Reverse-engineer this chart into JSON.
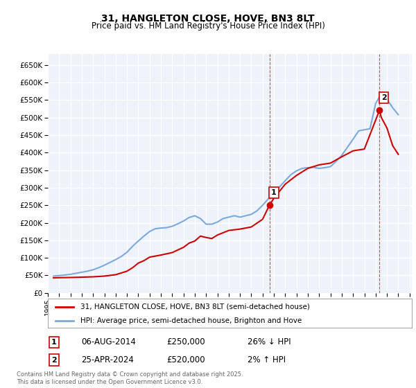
{
  "title": "31, HANGLETON CLOSE, HOVE, BN3 8LT",
  "subtitle": "Price paid vs. HM Land Registry's House Price Index (HPI)",
  "legend_label_red": "31, HANGLETON CLOSE, HOVE, BN3 8LT (semi-detached house)",
  "legend_label_blue": "HPI: Average price, semi-detached house, Brighton and Hove",
  "ylim": [
    0,
    680000
  ],
  "yticks": [
    0,
    50000,
    100000,
    150000,
    200000,
    250000,
    300000,
    350000,
    400000,
    450000,
    500000,
    550000,
    600000,
    650000
  ],
  "ytick_labels": [
    "£0",
    "£50K",
    "£100K",
    "£150K",
    "£200K",
    "£250K",
    "£300K",
    "£350K",
    "£400K",
    "£450K",
    "£500K",
    "£550K",
    "£600K",
    "£650K"
  ],
  "xlim_start": 1995.3,
  "xlim_end": 2027.2,
  "xticks": [
    1995,
    1996,
    1997,
    1998,
    1999,
    2000,
    2001,
    2002,
    2003,
    2004,
    2005,
    2006,
    2007,
    2008,
    2009,
    2010,
    2011,
    2012,
    2013,
    2014,
    2015,
    2016,
    2017,
    2018,
    2019,
    2020,
    2021,
    2022,
    2023,
    2024,
    2025,
    2026,
    2027
  ],
  "bg_color": "#eef2fb",
  "grid_color": "#ffffff",
  "line_color_red": "#cc0000",
  "line_color_blue": "#7aaadd",
  "marker1_x": 2014.6,
  "marker1_y": 250000,
  "marker2_x": 2024.33,
  "marker2_y": 520000,
  "vline1_x": 2014.6,
  "vline2_x": 2024.33,
  "table_row1": [
    "1",
    "06-AUG-2014",
    "£250,000",
    "26% ↓ HPI"
  ],
  "table_row2": [
    "2",
    "25-APR-2024",
    "£520,000",
    "2% ↑ HPI"
  ],
  "footer": "Contains HM Land Registry data © Crown copyright and database right 2025.\nThis data is licensed under the Open Government Licence v3.0.",
  "hpi_blue": [
    [
      1995.5,
      48000
    ],
    [
      1996.0,
      49500
    ],
    [
      1996.5,
      51000
    ],
    [
      1997.0,
      53000
    ],
    [
      1997.5,
      56000
    ],
    [
      1998.0,
      59000
    ],
    [
      1998.5,
      62000
    ],
    [
      1999.0,
      66000
    ],
    [
      1999.5,
      72000
    ],
    [
      2000.0,
      79000
    ],
    [
      2000.5,
      87000
    ],
    [
      2001.0,
      95000
    ],
    [
      2001.5,
      104000
    ],
    [
      2002.0,
      116000
    ],
    [
      2002.5,
      133000
    ],
    [
      2003.0,
      148000
    ],
    [
      2003.5,
      162000
    ],
    [
      2004.0,
      175000
    ],
    [
      2004.5,
      183000
    ],
    [
      2005.0,
      185000
    ],
    [
      2005.5,
      186000
    ],
    [
      2006.0,
      190000
    ],
    [
      2006.5,
      197000
    ],
    [
      2007.0,
      205000
    ],
    [
      2007.5,
      215000
    ],
    [
      2008.0,
      220000
    ],
    [
      2008.5,
      212000
    ],
    [
      2009.0,
      196000
    ],
    [
      2009.5,
      196000
    ],
    [
      2010.0,
      202000
    ],
    [
      2010.5,
      212000
    ],
    [
      2011.0,
      216000
    ],
    [
      2011.5,
      220000
    ],
    [
      2012.0,
      216000
    ],
    [
      2012.5,
      220000
    ],
    [
      2013.0,
      224000
    ],
    [
      2013.5,
      234000
    ],
    [
      2014.0,
      250000
    ],
    [
      2014.5,
      268000
    ],
    [
      2015.0,
      285000
    ],
    [
      2015.5,
      302000
    ],
    [
      2016.0,
      320000
    ],
    [
      2016.5,
      337000
    ],
    [
      2017.0,
      348000
    ],
    [
      2017.5,
      355000
    ],
    [
      2018.0,
      357000
    ],
    [
      2018.5,
      358000
    ],
    [
      2019.0,
      355000
    ],
    [
      2019.5,
      357000
    ],
    [
      2020.0,
      360000
    ],
    [
      2020.5,
      375000
    ],
    [
      2021.0,
      392000
    ],
    [
      2021.5,
      415000
    ],
    [
      2022.0,
      438000
    ],
    [
      2022.5,
      462000
    ],
    [
      2023.0,
      465000
    ],
    [
      2023.5,
      468000
    ],
    [
      2024.0,
      540000
    ],
    [
      2024.5,
      568000
    ],
    [
      2025.0,
      552000
    ],
    [
      2025.5,
      528000
    ],
    [
      2026.0,
      508000
    ]
  ],
  "price_red": [
    [
      1995.5,
      43000
    ],
    [
      1996.0,
      43500
    ],
    [
      1997.0,
      44000
    ],
    [
      1998.0,
      45000
    ],
    [
      1999.0,
      46000
    ],
    [
      2000.0,
      48000
    ],
    [
      2001.0,
      52000
    ],
    [
      2002.0,
      62000
    ],
    [
      2002.5,
      72000
    ],
    [
      2003.0,
      85000
    ],
    [
      2003.5,
      92000
    ],
    [
      2004.0,
      102000
    ],
    [
      2005.0,
      108000
    ],
    [
      2006.0,
      115000
    ],
    [
      2007.0,
      130000
    ],
    [
      2007.5,
      142000
    ],
    [
      2008.0,
      148000
    ],
    [
      2008.5,
      162000
    ],
    [
      2009.0,
      158000
    ],
    [
      2009.5,
      155000
    ],
    [
      2010.0,
      165000
    ],
    [
      2011.0,
      178000
    ],
    [
      2012.0,
      182000
    ],
    [
      2013.0,
      188000
    ],
    [
      2014.0,
      210000
    ],
    [
      2014.6,
      250000
    ],
    [
      2015.0,
      270000
    ],
    [
      2016.0,
      310000
    ],
    [
      2017.0,
      335000
    ],
    [
      2018.0,
      355000
    ],
    [
      2019.0,
      365000
    ],
    [
      2020.0,
      370000
    ],
    [
      2021.0,
      388000
    ],
    [
      2022.0,
      405000
    ],
    [
      2023.0,
      410000
    ],
    [
      2024.33,
      520000
    ],
    [
      2024.5,
      500000
    ],
    [
      2025.0,
      470000
    ],
    [
      2025.5,
      420000
    ],
    [
      2026.0,
      395000
    ]
  ]
}
